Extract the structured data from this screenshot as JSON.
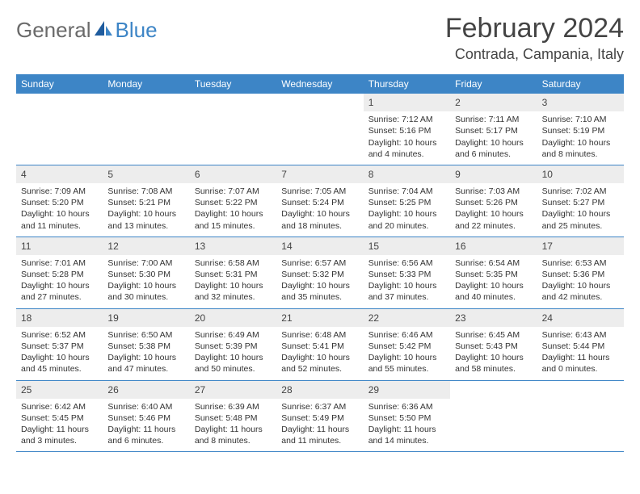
{
  "logo": {
    "text1": "General",
    "text2": "Blue"
  },
  "title": "February 2024",
  "location": "Contrada, Campania, Italy",
  "colors": {
    "header_bg": "#3d85c6",
    "header_text": "#ffffff",
    "daynum_bg": "#ededed",
    "border": "#3d85c6",
    "body_text": "#333333",
    "title_text": "#444444"
  },
  "weekdays": [
    "Sunday",
    "Monday",
    "Tuesday",
    "Wednesday",
    "Thursday",
    "Friday",
    "Saturday"
  ],
  "weeks": [
    [
      null,
      null,
      null,
      null,
      {
        "num": "1",
        "sunrise": "Sunrise: 7:12 AM",
        "sunset": "Sunset: 5:16 PM",
        "daylight": "Daylight: 10 hours and 4 minutes."
      },
      {
        "num": "2",
        "sunrise": "Sunrise: 7:11 AM",
        "sunset": "Sunset: 5:17 PM",
        "daylight": "Daylight: 10 hours and 6 minutes."
      },
      {
        "num": "3",
        "sunrise": "Sunrise: 7:10 AM",
        "sunset": "Sunset: 5:19 PM",
        "daylight": "Daylight: 10 hours and 8 minutes."
      }
    ],
    [
      {
        "num": "4",
        "sunrise": "Sunrise: 7:09 AM",
        "sunset": "Sunset: 5:20 PM",
        "daylight": "Daylight: 10 hours and 11 minutes."
      },
      {
        "num": "5",
        "sunrise": "Sunrise: 7:08 AM",
        "sunset": "Sunset: 5:21 PM",
        "daylight": "Daylight: 10 hours and 13 minutes."
      },
      {
        "num": "6",
        "sunrise": "Sunrise: 7:07 AM",
        "sunset": "Sunset: 5:22 PM",
        "daylight": "Daylight: 10 hours and 15 minutes."
      },
      {
        "num": "7",
        "sunrise": "Sunrise: 7:05 AM",
        "sunset": "Sunset: 5:24 PM",
        "daylight": "Daylight: 10 hours and 18 minutes."
      },
      {
        "num": "8",
        "sunrise": "Sunrise: 7:04 AM",
        "sunset": "Sunset: 5:25 PM",
        "daylight": "Daylight: 10 hours and 20 minutes."
      },
      {
        "num": "9",
        "sunrise": "Sunrise: 7:03 AM",
        "sunset": "Sunset: 5:26 PM",
        "daylight": "Daylight: 10 hours and 22 minutes."
      },
      {
        "num": "10",
        "sunrise": "Sunrise: 7:02 AM",
        "sunset": "Sunset: 5:27 PM",
        "daylight": "Daylight: 10 hours and 25 minutes."
      }
    ],
    [
      {
        "num": "11",
        "sunrise": "Sunrise: 7:01 AM",
        "sunset": "Sunset: 5:28 PM",
        "daylight": "Daylight: 10 hours and 27 minutes."
      },
      {
        "num": "12",
        "sunrise": "Sunrise: 7:00 AM",
        "sunset": "Sunset: 5:30 PM",
        "daylight": "Daylight: 10 hours and 30 minutes."
      },
      {
        "num": "13",
        "sunrise": "Sunrise: 6:58 AM",
        "sunset": "Sunset: 5:31 PM",
        "daylight": "Daylight: 10 hours and 32 minutes."
      },
      {
        "num": "14",
        "sunrise": "Sunrise: 6:57 AM",
        "sunset": "Sunset: 5:32 PM",
        "daylight": "Daylight: 10 hours and 35 minutes."
      },
      {
        "num": "15",
        "sunrise": "Sunrise: 6:56 AM",
        "sunset": "Sunset: 5:33 PM",
        "daylight": "Daylight: 10 hours and 37 minutes."
      },
      {
        "num": "16",
        "sunrise": "Sunrise: 6:54 AM",
        "sunset": "Sunset: 5:35 PM",
        "daylight": "Daylight: 10 hours and 40 minutes."
      },
      {
        "num": "17",
        "sunrise": "Sunrise: 6:53 AM",
        "sunset": "Sunset: 5:36 PM",
        "daylight": "Daylight: 10 hours and 42 minutes."
      }
    ],
    [
      {
        "num": "18",
        "sunrise": "Sunrise: 6:52 AM",
        "sunset": "Sunset: 5:37 PM",
        "daylight": "Daylight: 10 hours and 45 minutes."
      },
      {
        "num": "19",
        "sunrise": "Sunrise: 6:50 AM",
        "sunset": "Sunset: 5:38 PM",
        "daylight": "Daylight: 10 hours and 47 minutes."
      },
      {
        "num": "20",
        "sunrise": "Sunrise: 6:49 AM",
        "sunset": "Sunset: 5:39 PM",
        "daylight": "Daylight: 10 hours and 50 minutes."
      },
      {
        "num": "21",
        "sunrise": "Sunrise: 6:48 AM",
        "sunset": "Sunset: 5:41 PM",
        "daylight": "Daylight: 10 hours and 52 minutes."
      },
      {
        "num": "22",
        "sunrise": "Sunrise: 6:46 AM",
        "sunset": "Sunset: 5:42 PM",
        "daylight": "Daylight: 10 hours and 55 minutes."
      },
      {
        "num": "23",
        "sunrise": "Sunrise: 6:45 AM",
        "sunset": "Sunset: 5:43 PM",
        "daylight": "Daylight: 10 hours and 58 minutes."
      },
      {
        "num": "24",
        "sunrise": "Sunrise: 6:43 AM",
        "sunset": "Sunset: 5:44 PM",
        "daylight": "Daylight: 11 hours and 0 minutes."
      }
    ],
    [
      {
        "num": "25",
        "sunrise": "Sunrise: 6:42 AM",
        "sunset": "Sunset: 5:45 PM",
        "daylight": "Daylight: 11 hours and 3 minutes."
      },
      {
        "num": "26",
        "sunrise": "Sunrise: 6:40 AM",
        "sunset": "Sunset: 5:46 PM",
        "daylight": "Daylight: 11 hours and 6 minutes."
      },
      {
        "num": "27",
        "sunrise": "Sunrise: 6:39 AM",
        "sunset": "Sunset: 5:48 PM",
        "daylight": "Daylight: 11 hours and 8 minutes."
      },
      {
        "num": "28",
        "sunrise": "Sunrise: 6:37 AM",
        "sunset": "Sunset: 5:49 PM",
        "daylight": "Daylight: 11 hours and 11 minutes."
      },
      {
        "num": "29",
        "sunrise": "Sunrise: 6:36 AM",
        "sunset": "Sunset: 5:50 PM",
        "daylight": "Daylight: 11 hours and 14 minutes."
      },
      null,
      null
    ]
  ]
}
